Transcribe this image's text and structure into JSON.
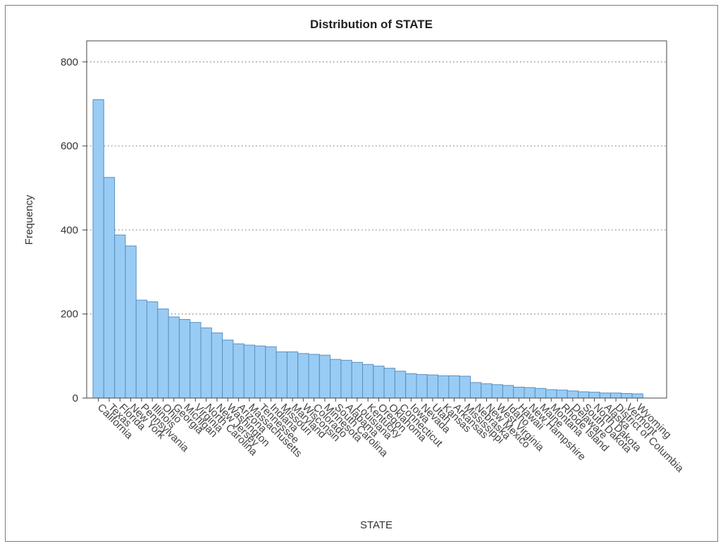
{
  "chart_data": {
    "type": "bar",
    "title": "Distribution of STATE",
    "xlabel": "STATE",
    "ylabel": "Frequency",
    "ylim": [
      0,
      850
    ],
    "yticks": [
      0,
      200,
      400,
      600,
      800
    ],
    "grid": "horizontal-dotted",
    "bar_color": "#99ccf5",
    "bar_edge_color": "#5a8fbf",
    "categories": [
      "California",
      "Texas",
      "Florida",
      "New York",
      "Pennsylvania",
      "Illinois",
      "Ohio",
      "Georgia",
      "Michigan",
      "Virginia",
      "North Carolina",
      "New Jersey",
      "Washington",
      "Arizona",
      "Massachusetts",
      "Tennessee",
      "Indiana",
      "Missouri",
      "Maryland",
      "Wisconsin",
      "Colorado",
      "Minnesota",
      "South Carolina",
      "Alabama",
      "Louisiana",
      "Kentucky",
      "Oregon",
      "Oklahoma",
      "Connecticut",
      "Iowa",
      "Nevada",
      "Utah",
      "Kansas",
      "Arkansas",
      "Mississippi",
      "Nebraska",
      "New Mexico",
      "West Virginia",
      "Idaho",
      "Hawaii",
      "New Hampshire",
      "Maine",
      "Montana",
      "Rhode Island",
      "Delaware",
      "South Dakota",
      "North Dakota",
      "Alaska",
      "District of Columbia",
      "Vermont",
      "Wyoming"
    ],
    "values": [
      710,
      525,
      388,
      362,
      233,
      229,
      212,
      193,
      187,
      180,
      167,
      155,
      138,
      129,
      126,
      124,
      122,
      110,
      110,
      106,
      104,
      102,
      92,
      90,
      85,
      80,
      76,
      71,
      64,
      58,
      56,
      55,
      53,
      53,
      52,
      37,
      34,
      32,
      30,
      26,
      25,
      23,
      20,
      19,
      17,
      15,
      14,
      12,
      12,
      11,
      10
    ]
  }
}
